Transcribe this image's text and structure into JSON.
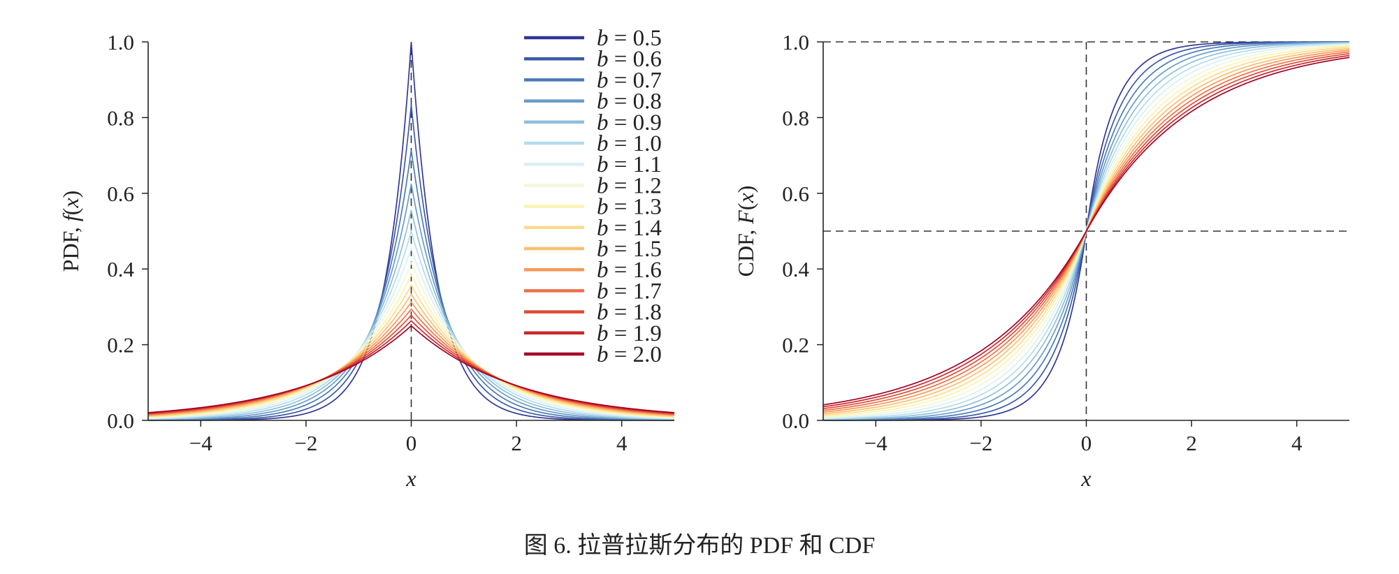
{
  "caption": "图 6. 拉普拉斯分布的 PDF 和 CDF",
  "legend_items": [
    {
      "var": "b",
      "text": " = 0.5"
    },
    {
      "var": "b",
      "text": " = 0.6"
    },
    {
      "var": "b",
      "text": " = 0.7"
    },
    {
      "var": "b",
      "text": " = 0.8"
    },
    {
      "var": "b",
      "text": " = 0.9"
    },
    {
      "var": "b",
      "text": " = 1.0"
    },
    {
      "var": "b",
      "text": " = 1.1"
    },
    {
      "var": "b",
      "text": " = 1.2"
    },
    {
      "var": "b",
      "text": " = 1.3"
    },
    {
      "var": "b",
      "text": " = 1.4"
    },
    {
      "var": "b",
      "text": " = 1.5"
    },
    {
      "var": "b",
      "text": " = 1.6"
    },
    {
      "var": "b",
      "text": " = 1.7"
    },
    {
      "var": "b",
      "text": " = 1.8"
    },
    {
      "var": "b",
      "text": " = 1.9"
    },
    {
      "var": "b",
      "text": " = 2.0"
    }
  ],
  "colors": [
    "#313695",
    "#3c59a6",
    "#4a7bb7",
    "#6a9bc9",
    "#8ebfdb",
    "#b3dbea",
    "#d9eff6",
    "#f0f8d6",
    "#fff1b1",
    "#fedb8a",
    "#fdbd6f",
    "#f99857",
    "#f06f46",
    "#de4b35",
    "#c7292b",
    "#a50026"
  ],
  "chart_data": [
    {
      "type": "line",
      "title": "",
      "xlabel": "x",
      "ylabel_text": "PDF, ",
      "ylabel_func": "f",
      "ylabel_arg": "x",
      "xlim": [
        -5,
        5
      ],
      "ylim": [
        0,
        1.0
      ],
      "xticks": [
        -4,
        -2,
        0,
        2,
        4
      ],
      "xtick_labels": [
        "−4",
        "−2",
        "0",
        "2",
        "4"
      ],
      "yticks": [
        0,
        0.2,
        0.4,
        0.6,
        0.8,
        1.0
      ],
      "ytick_labels": [
        "0.0",
        "0.2",
        "0.4",
        "0.6",
        "0.8",
        "1.0"
      ],
      "function": "laplace_pdf",
      "mu": 0,
      "b_values": [
        0.5,
        0.6,
        0.7,
        0.8,
        0.9,
        1.0,
        1.1,
        1.2,
        1.3,
        1.4,
        1.5,
        1.6,
        1.7,
        1.8,
        1.9,
        2.0
      ],
      "reference_lines": [
        {
          "orientation": "vertical",
          "x": 0,
          "style": "dashed"
        }
      ],
      "legend_position": "top-right"
    },
    {
      "type": "line",
      "title": "",
      "xlabel": "x",
      "ylabel_text": "CDF, ",
      "ylabel_func": "F",
      "ylabel_arg": "x",
      "xlim": [
        -5,
        5
      ],
      "ylim": [
        0,
        1.0
      ],
      "xticks": [
        -4,
        -2,
        0,
        2,
        4
      ],
      "xtick_labels": [
        "−4",
        "−2",
        "0",
        "2",
        "4"
      ],
      "yticks": [
        0,
        0.2,
        0.4,
        0.6,
        0.8,
        1.0
      ],
      "ytick_labels": [
        "0.0",
        "0.2",
        "0.4",
        "0.6",
        "0.8",
        "1.0"
      ],
      "function": "laplace_cdf",
      "mu": 0,
      "b_values": [
        0.5,
        0.6,
        0.7,
        0.8,
        0.9,
        1.0,
        1.1,
        1.2,
        1.3,
        1.4,
        1.5,
        1.6,
        1.7,
        1.8,
        1.9,
        2.0
      ],
      "reference_lines": [
        {
          "orientation": "horizontal",
          "y": 1.0,
          "style": "dashed"
        },
        {
          "orientation": "horizontal",
          "y": 0.5,
          "style": "dashed"
        },
        {
          "orientation": "vertical",
          "x": 0,
          "style": "dashed"
        }
      ]
    }
  ]
}
